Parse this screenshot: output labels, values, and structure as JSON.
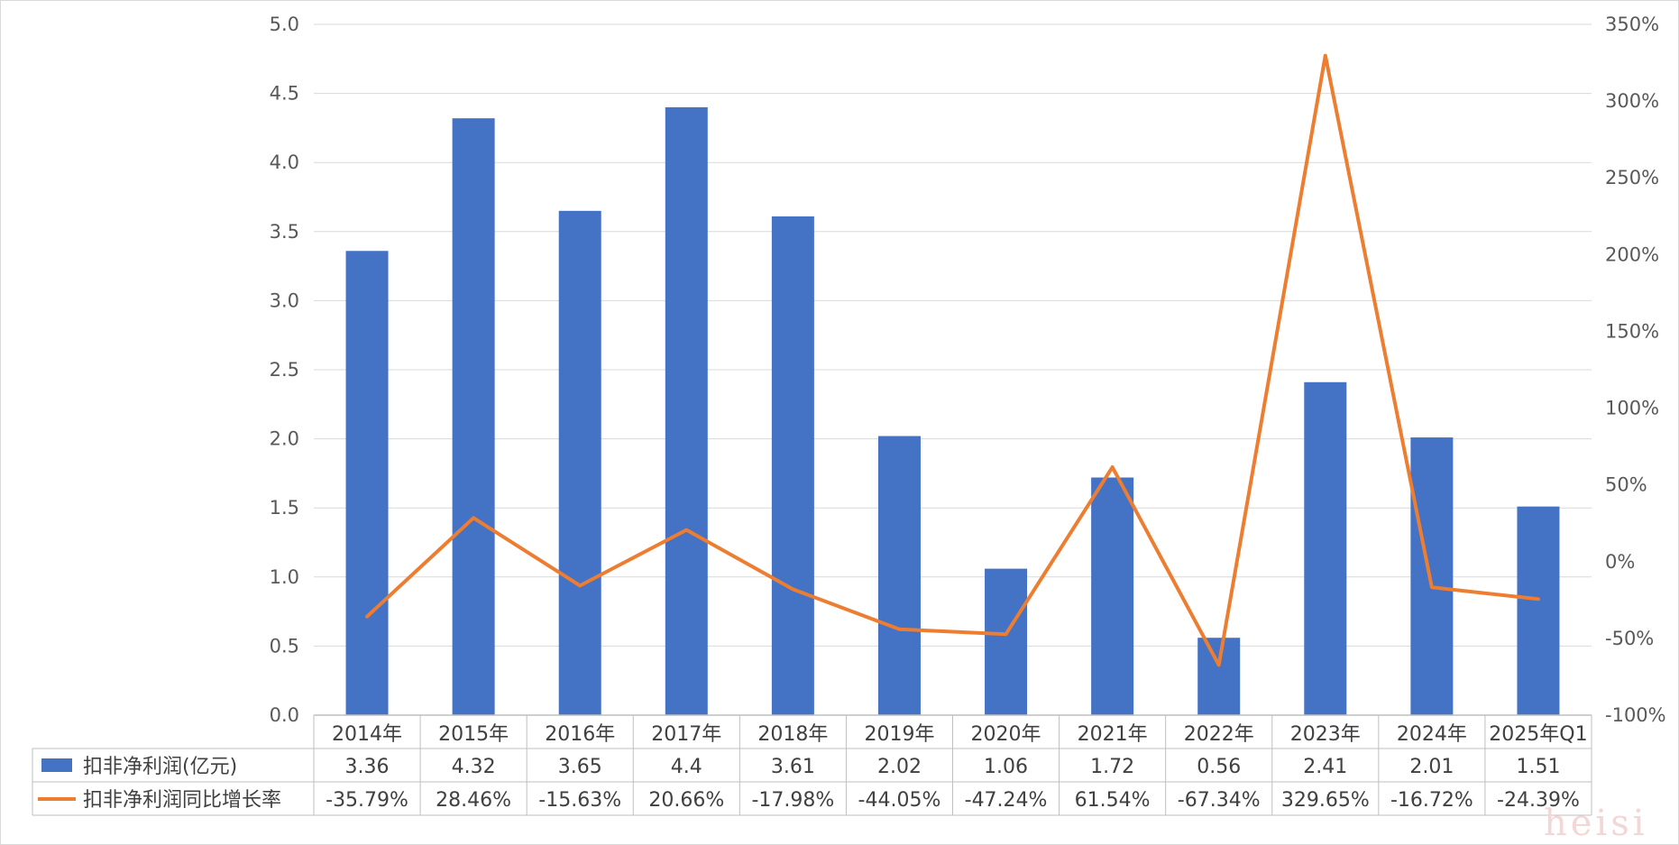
{
  "watermark": "heisi",
  "chart_data": {
    "type": "bar",
    "categories": [
      "2014年",
      "2015年",
      "2016年",
      "2017年",
      "2018年",
      "2019年",
      "2020年",
      "2021年",
      "2022年",
      "2023年",
      "2024年",
      "2025年Q1"
    ],
    "y_left": {
      "min": 0,
      "max": 5,
      "step": 0.5,
      "ticks": [
        "0.0",
        "0.5",
        "1.0",
        "1.5",
        "2.0",
        "2.5",
        "3.0",
        "3.5",
        "4.0",
        "4.5",
        "5.0"
      ]
    },
    "y_right": {
      "min": -100,
      "max": 350,
      "step": 50,
      "ticks": [
        "-100%",
        "-50%",
        "0%",
        "50%",
        "100%",
        "150%",
        "200%",
        "250%",
        "300%",
        "350%"
      ]
    },
    "grid": true,
    "legend": "data-table",
    "series": [
      {
        "name": "扣非净利润(亿元)",
        "type": "bar",
        "axis": "left",
        "color": "#4472C4",
        "values": [
          3.36,
          4.32,
          3.65,
          4.4,
          3.61,
          2.02,
          1.06,
          1.72,
          0.56,
          2.41,
          2.01,
          1.51
        ],
        "labels": [
          "3.36",
          "4.32",
          "3.65",
          "4.4",
          "3.61",
          "2.02",
          "1.06",
          "1.72",
          "0.56",
          "2.41",
          "2.01",
          "1.51"
        ]
      },
      {
        "name": "扣非净利润同比增长率",
        "type": "line",
        "axis": "right",
        "color": "#ED7D31",
        "values": [
          -35.79,
          28.46,
          -15.63,
          20.66,
          -17.98,
          -44.05,
          -47.24,
          61.54,
          -67.34,
          329.65,
          -16.72,
          -24.39
        ],
        "labels": [
          "-35.79%",
          "28.46%",
          "-15.63%",
          "20.66%",
          "-17.98%",
          "-44.05%",
          "-47.24%",
          "61.54%",
          "-67.34%",
          "329.65%",
          "-16.72%",
          "-24.39%"
        ]
      }
    ]
  }
}
